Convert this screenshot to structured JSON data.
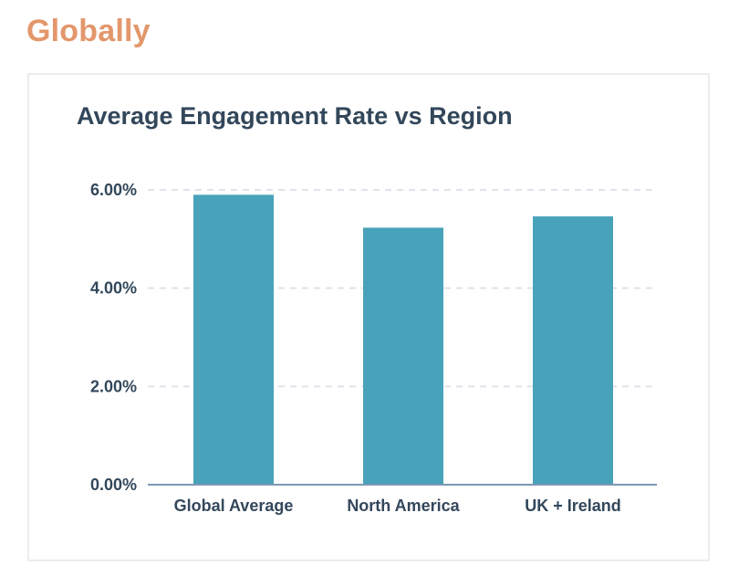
{
  "page": {
    "heading": "Globally"
  },
  "colors": {
    "heading": "#e3976b",
    "text": "#33475b",
    "bar": "#48a2b9",
    "grid": "#dfe3eb",
    "axis": "#7c98b6"
  },
  "chart_data": {
    "type": "bar",
    "title": "Average Engagement Rate vs Region",
    "xlabel": "",
    "ylabel": "",
    "categories": [
      "Global Average",
      "North America",
      "UK + Ireland"
    ],
    "values": [
      5.9,
      5.23,
      5.46
    ],
    "ylim": [
      0,
      6
    ],
    "yticks": [
      0,
      2,
      4,
      6
    ],
    "ytick_labels": [
      "0.00%",
      "2.00%",
      "4.00%",
      "6.00%"
    ],
    "grid": true,
    "grid_style": "dashed-horizontal",
    "legend": "none"
  }
}
